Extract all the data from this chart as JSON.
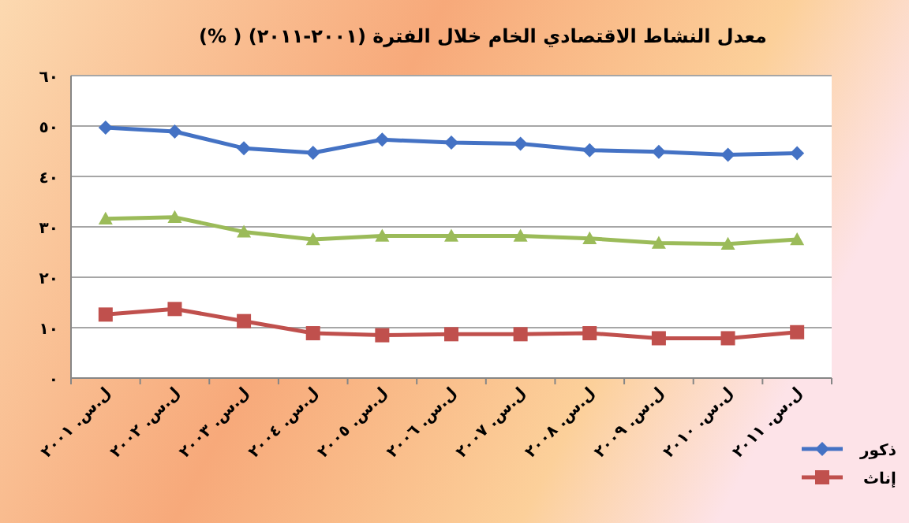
{
  "chart_data": {
    "type": "line",
    "title": "معدل النشاط الاقتصادي الخام خلال الفترة (٢٠٠١-٢٠١١) ( %)",
    "categories": [
      "ل.س. ٢٠٠١",
      "ل.س. ٢٠٠٢",
      "ل.س. ٢٠٠٣",
      "ل.س. ٢٠٠٤",
      "ل.س. ٢٠٠٥",
      "ل.س. ٢٠٠٦",
      "ل.س. ٢٠٠٧",
      "ل.س. ٢٠٠٨",
      "ل.س. ٢٠٠٩",
      "ل.س. ٢٠١٠",
      "ل.س. ٢٠١١"
    ],
    "series": [
      {
        "name": "ذكور",
        "color": "#4472c4",
        "marker": "diamond",
        "values": [
          49.7,
          48.9,
          45.6,
          44.7,
          47.3,
          46.7,
          46.5,
          45.2,
          44.9,
          44.3,
          44.6
        ]
      },
      {
        "color": "#9bbb59",
        "marker": "triangle",
        "values": [
          31.6,
          31.9,
          29.0,
          27.5,
          28.2,
          28.2,
          28.2,
          27.7,
          26.8,
          26.6,
          27.5
        ]
      },
      {
        "name": "إناث",
        "color": "#c0504d",
        "marker": "square",
        "values": [
          12.6,
          13.7,
          11.3,
          8.9,
          8.5,
          8.7,
          8.7,
          8.9,
          7.9,
          7.9,
          9.1
        ]
      }
    ],
    "ylim": [
      0,
      60
    ],
    "yticks": [
      {
        "value": 0,
        "label": "٠"
      },
      {
        "value": 10,
        "label": "١٠"
      },
      {
        "value": 20,
        "label": "٢٠"
      },
      {
        "value": 30,
        "label": "٣٠"
      },
      {
        "value": 40,
        "label": "٤٠"
      },
      {
        "value": 50,
        "label": "٥٠"
      },
      {
        "value": 60,
        "label": "٦٠"
      }
    ],
    "grid": "y",
    "legend": "bottom right"
  }
}
